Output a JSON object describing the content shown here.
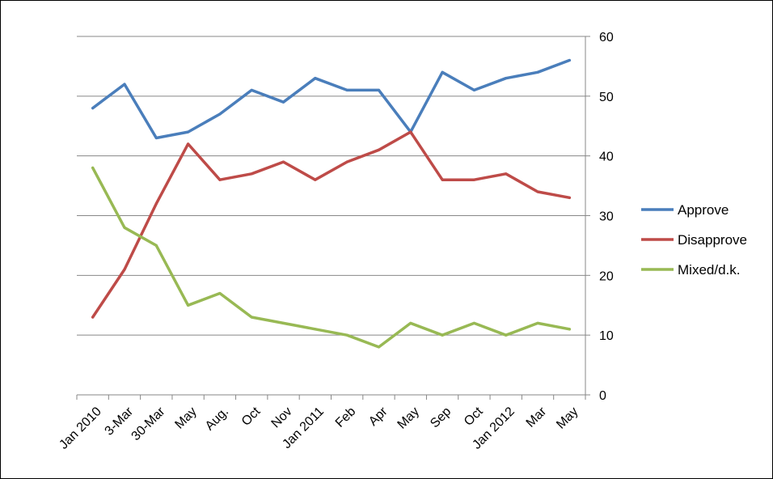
{
  "chart_data": {
    "type": "line",
    "title": "",
    "xlabel": "",
    "ylabel": "",
    "categories": [
      "Jan 2010",
      "3-Mar",
      "30-Mar",
      "May",
      "Aug.",
      "Oct",
      "Nov",
      "Jan 2011",
      "Feb",
      "Apr",
      "May",
      "Sep",
      "Oct",
      "Jan 2012",
      "Mar",
      "May"
    ],
    "ylim": [
      0,
      60
    ],
    "yticks": [
      0,
      10,
      20,
      30,
      40,
      50,
      60
    ],
    "y_axis_side": "right",
    "grid": "horizontal",
    "legend_position": "right",
    "series": [
      {
        "name": "Approve",
        "color": "#4a7ebb",
        "values": [
          48,
          52,
          43,
          44,
          47,
          51,
          49,
          53,
          51,
          51,
          44,
          54,
          51,
          53,
          54,
          56
        ]
      },
      {
        "name": "Disapprove",
        "color": "#be4b48",
        "values": [
          13,
          21,
          32,
          42,
          36,
          37,
          39,
          36,
          39,
          41,
          44,
          36,
          36,
          37,
          34,
          33
        ]
      },
      {
        "name": "Mixed/d.k.",
        "color": "#98b954",
        "values": [
          38,
          28,
          25,
          15,
          17,
          13,
          12,
          11,
          10,
          8,
          12,
          10,
          12,
          10,
          12,
          11
        ]
      }
    ]
  }
}
